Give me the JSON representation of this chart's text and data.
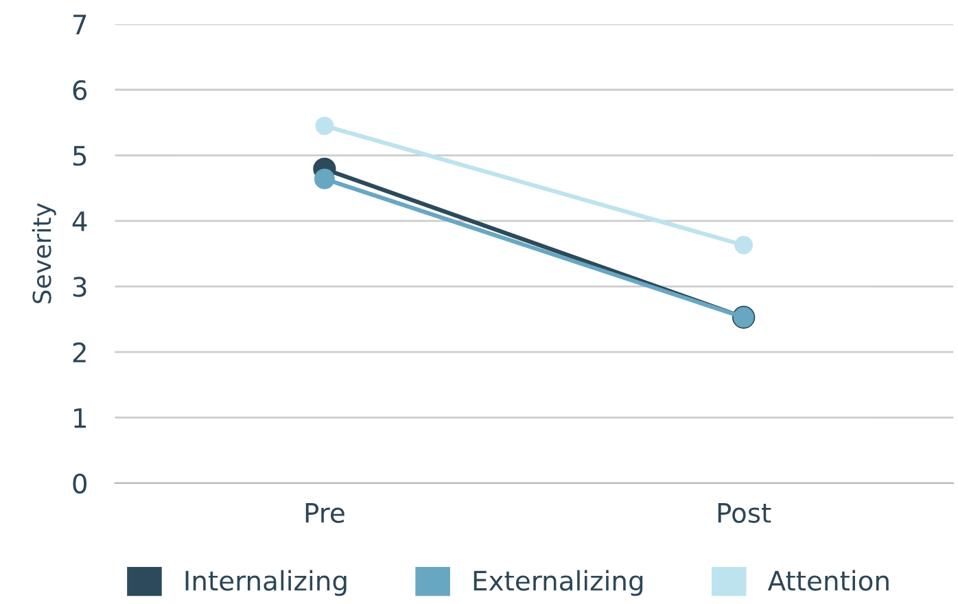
{
  "chart_data": {
    "type": "line",
    "ylabel": "Severity",
    "categories": [
      "Pre",
      "Post"
    ],
    "series": [
      {
        "name": "Internalizing",
        "color": "#2c4a5a",
        "values": [
          4.79,
          2.53
        ]
      },
      {
        "name": "Externalizing",
        "color": "#68a7c1",
        "values": [
          4.64,
          2.53
        ]
      },
      {
        "name": "Attention",
        "color": "#bde3ee",
        "values": [
          5.45,
          3.63
        ]
      }
    ],
    "ylim": [
      0,
      7
    ],
    "yticks": [
      0,
      1,
      2,
      3,
      4,
      5,
      6,
      7
    ],
    "grid": "y",
    "legend": "bottom",
    "marker": "circle",
    "line_style": "solid"
  }
}
